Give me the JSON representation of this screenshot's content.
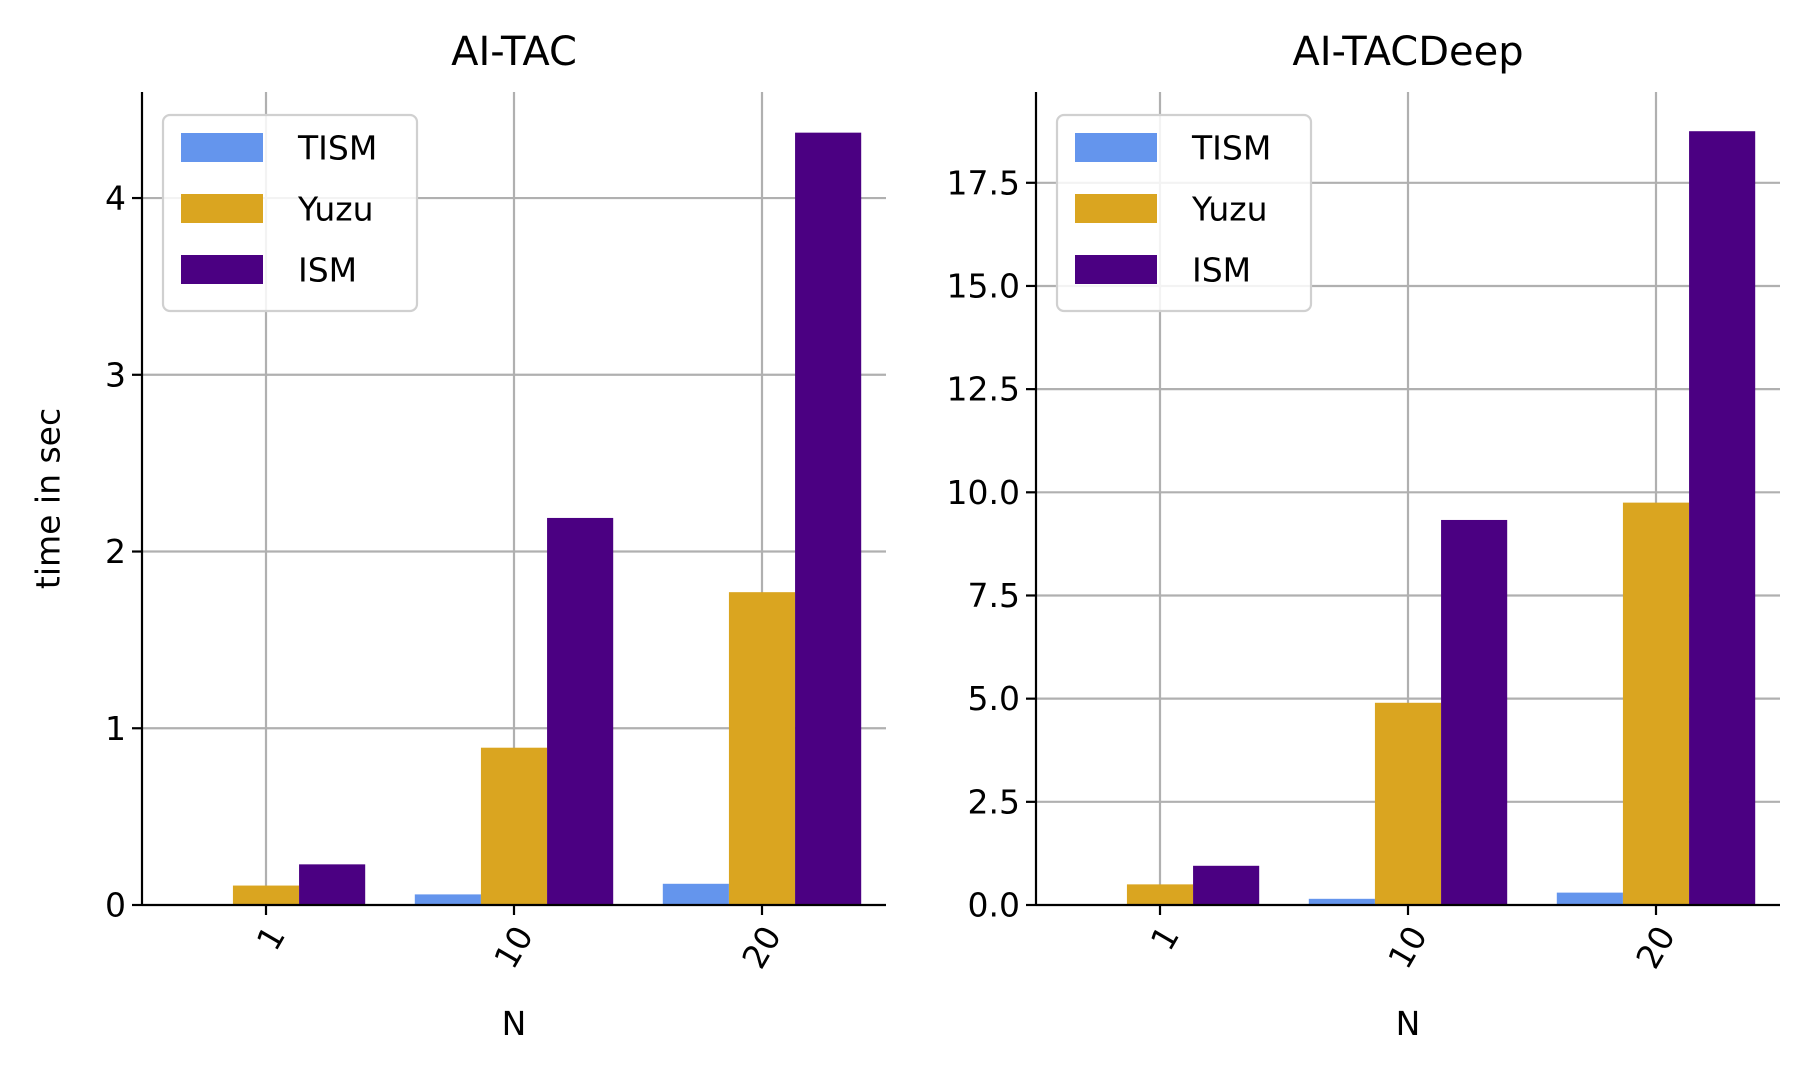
{
  "chart_data": [
    {
      "type": "bar",
      "title": "AI-TAC",
      "xlabel": "N",
      "ylabel": "time in sec",
      "categories": [
        "1",
        "10",
        "20"
      ],
      "series": [
        {
          "name": "TISM",
          "color": "#6495ED",
          "values": [
            0.0,
            0.06,
            0.12
          ]
        },
        {
          "name": "Yuzu",
          "color": "#DAA520",
          "values": [
            0.11,
            0.89,
            1.77
          ]
        },
        {
          "name": "ISM",
          "color": "#4B0082",
          "values": [
            0.23,
            2.19,
            4.37
          ]
        }
      ],
      "ylim": [
        0,
        4.6
      ],
      "yticks": [
        0,
        1,
        2,
        3,
        4
      ],
      "ytick_labels": [
        "0",
        "1",
        "2",
        "3",
        "4"
      ],
      "grid": true,
      "legend_position": "top-left"
    },
    {
      "type": "bar",
      "title": "AI-TACDeep",
      "xlabel": "N",
      "ylabel": "",
      "categories": [
        "1",
        "10",
        "20"
      ],
      "series": [
        {
          "name": "TISM",
          "color": "#6495ED",
          "values": [
            0.0,
            0.15,
            0.3
          ]
        },
        {
          "name": "Yuzu",
          "color": "#DAA520",
          "values": [
            0.5,
            4.9,
            9.75
          ]
        },
        {
          "name": "ISM",
          "color": "#4B0082",
          "values": [
            0.95,
            9.33,
            18.75
          ]
        }
      ],
      "ylim": [
        0,
        19.7
      ],
      "yticks": [
        0,
        2.5,
        5,
        7.5,
        10,
        12.5,
        15,
        17.5
      ],
      "ytick_labels": [
        "0.0",
        "2.5",
        "5.0",
        "7.5",
        "10.0",
        "12.5",
        "15.0",
        "17.5"
      ],
      "grid": true,
      "legend_position": "top-left"
    }
  ]
}
